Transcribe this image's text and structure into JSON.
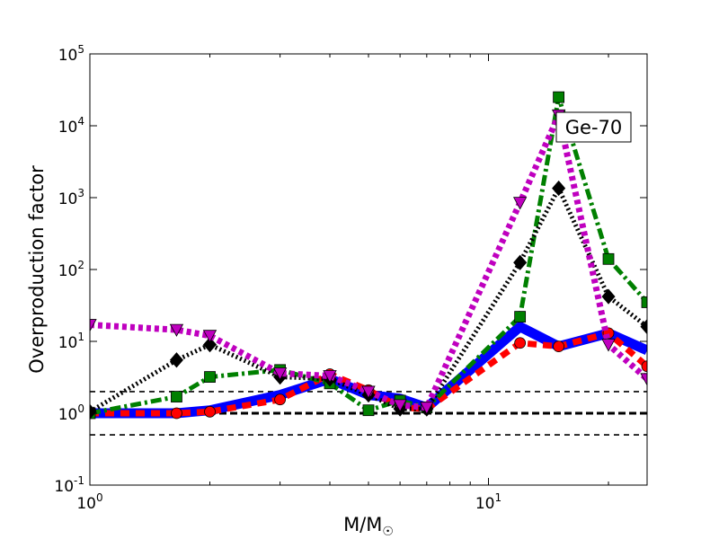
{
  "chart_data": {
    "type": "line",
    "xscale": "log",
    "yscale": "log",
    "xlim": [
      1,
      25
    ],
    "ylim": [
      0.1,
      100000
    ],
    "xlabel": "M/M",
    "xlabel_sub": "☉",
    "ylabel": "Overproduction factor",
    "x_ticks": [
      {
        "value": 1,
        "base": "10",
        "exp": "0"
      },
      {
        "value": 10,
        "base": "10",
        "exp": "1"
      }
    ],
    "y_ticks": [
      {
        "value": 0.1,
        "base": "10",
        "exp": "-1"
      },
      {
        "value": 1,
        "base": "10",
        "exp": "0"
      },
      {
        "value": 10,
        "base": "10",
        "exp": "1"
      },
      {
        "value": 100,
        "base": "10",
        "exp": "2"
      },
      {
        "value": 1000,
        "base": "10",
        "exp": "3"
      },
      {
        "value": 10000,
        "base": "10",
        "exp": "4"
      },
      {
        "value": 100000,
        "base": "10",
        "exp": "5"
      }
    ],
    "annotation": "Ge-70",
    "reference_lines": [
      {
        "y": 2,
        "style": "dashed",
        "weight": "thin",
        "color": "#000000"
      },
      {
        "y": 1,
        "style": "dashed",
        "weight": "thick",
        "color": "#000000"
      },
      {
        "y": 0.5,
        "style": "dashed",
        "weight": "thin",
        "color": "#000000"
      }
    ],
    "series": [
      {
        "color": "#ff0000",
        "marker": "circle",
        "line_style": "dashed",
        "x": [
          1,
          1.65,
          2,
          3,
          4,
          5,
          6,
          7,
          12,
          15,
          20,
          25
        ],
        "y": [
          1.0,
          1.0,
          1.05,
          1.55,
          3.5,
          2.1,
          1.2,
          1.15,
          9.5,
          8.5,
          13,
          4.5
        ]
      },
      {
        "color": "#0000ff",
        "marker": "none",
        "line_style": "solid",
        "x": [
          1,
          1.65,
          2,
          3,
          4,
          5,
          6,
          7,
          12,
          15,
          20,
          25
        ],
        "y": [
          1.0,
          1.0,
          1.1,
          1.8,
          3.0,
          1.8,
          1.6,
          1.2,
          16,
          8.5,
          13,
          7.5
        ]
      },
      {
        "color": "#008000",
        "marker": "square",
        "line_style": "dashdot",
        "x": [
          1,
          1.65,
          2,
          3,
          4,
          5,
          6,
          7,
          12,
          15,
          20,
          25
        ],
        "y": [
          1.0,
          1.7,
          3.2,
          4.0,
          2.6,
          1.1,
          1.5,
          1.2,
          22,
          25000,
          140,
          35
        ]
      },
      {
        "color": "#000000",
        "marker": "diamond",
        "line_style": "dotted",
        "x": [
          1,
          1.65,
          2,
          3,
          4,
          5,
          6,
          7,
          12,
          15,
          20,
          25
        ],
        "y": [
          1.05,
          5.5,
          9.0,
          3.2,
          3.0,
          1.8,
          1.15,
          1.15,
          125,
          1350,
          42,
          16
        ]
      },
      {
        "color": "#bf00bf",
        "marker": "triangle-down",
        "line_style": "dotted",
        "x": [
          1,
          1.65,
          2,
          3,
          4,
          5,
          6,
          7,
          12,
          15,
          20,
          25
        ],
        "y": [
          17,
          14.5,
          12,
          3.6,
          3.3,
          2.0,
          1.3,
          1.2,
          850,
          14000,
          9,
          3
        ]
      }
    ]
  }
}
